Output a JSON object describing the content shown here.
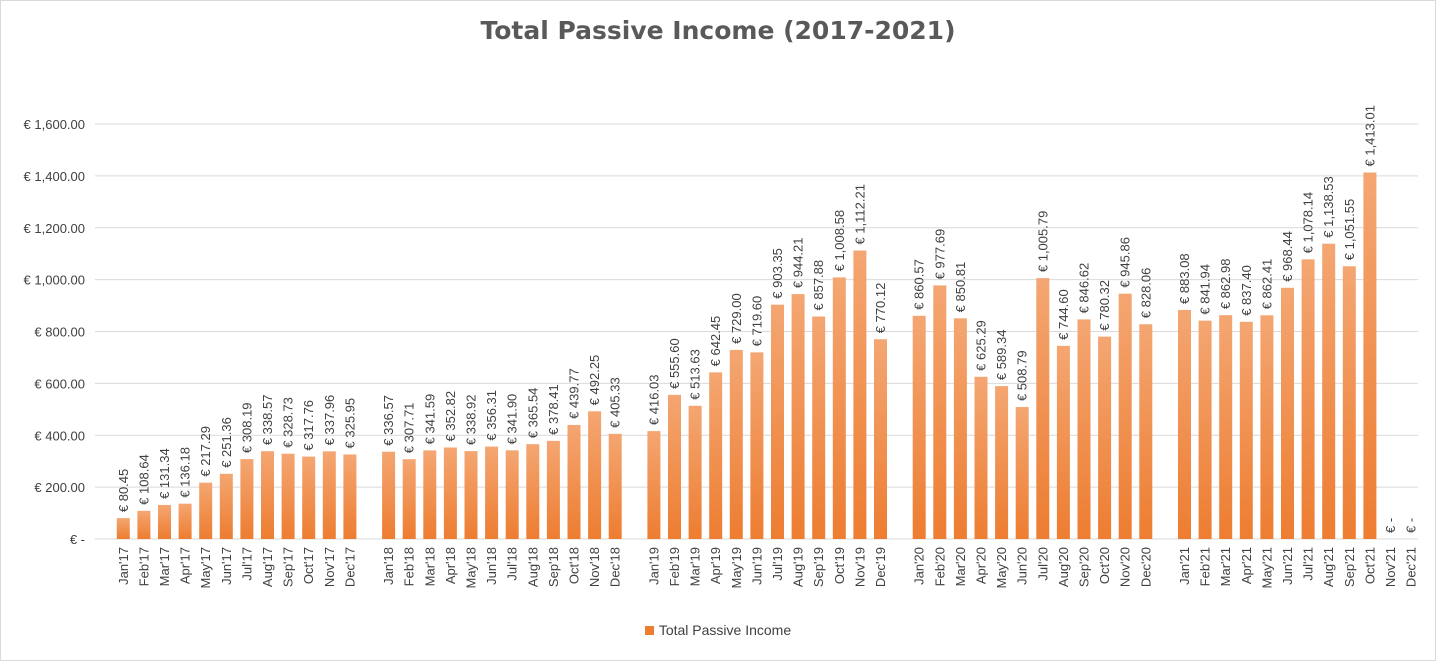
{
  "chart_data": {
    "type": "bar",
    "title": "Total Passive Income (2017-2021)",
    "xlabel": "",
    "ylabel": "",
    "ylim": [
      0,
      1600
    ],
    "y_ticks": [
      0,
      200,
      400,
      600,
      800,
      1000,
      1200,
      1400,
      1600
    ],
    "y_tick_labels": [
      "€ -",
      "€ 200.00",
      "€ 400.00",
      "€ 600.00",
      "€ 800.00",
      "€ 1,000.00",
      "€ 1,200.00",
      "€ 1,400.00",
      "€ 1,600.00"
    ],
    "grid": true,
    "legend_position": "bottom",
    "bar_color": "#ed7d31",
    "bar_color_light": "#f4a672",
    "series": [
      {
        "name": "Total Passive Income",
        "groups": [
          {
            "categories": [
              "Jan'17",
              "Feb'17",
              "Mar'17",
              "Apr'17",
              "May'17",
              "Jun'17",
              "Jul'17",
              "Aug'17",
              "Sep'17",
              "Oct'17",
              "Nov'17",
              "Dec'17"
            ],
            "values": [
              80.45,
              108.64,
              131.34,
              136.18,
              217.29,
              251.36,
              308.19,
              338.57,
              328.73,
              317.76,
              337.96,
              325.95
            ],
            "labels": [
              "€ 80.45",
              "€ 108.64",
              "€ 131.34",
              "€ 136.18",
              "€ 217.29",
              "€ 251.36",
              "€ 308.19",
              "€ 338.57",
              "€ 328.73",
              "€ 317.76",
              "€ 337.96",
              "€ 325.95"
            ]
          },
          {
            "categories": [
              "Jan'18",
              "Feb'18",
              "Mar'18",
              "Apr'18",
              "May'18",
              "Jun'18",
              "Jul'18",
              "Aug'18",
              "Sep'18",
              "Oct'18",
              "Nov'18",
              "Dec'18"
            ],
            "values": [
              336.57,
              307.71,
              341.59,
              352.82,
              338.92,
              356.31,
              341.9,
              365.54,
              378.41,
              439.77,
              492.25,
              405.33
            ],
            "labels": [
              "€ 336.57",
              "€ 307.71",
              "€ 341.59",
              "€ 352.82",
              "€ 338.92",
              "€ 356.31",
              "€ 341.90",
              "€ 365.54",
              "€ 378.41",
              "€ 439.77",
              "€ 492.25",
              "€ 405.33"
            ]
          },
          {
            "categories": [
              "Jan'19",
              "Feb'19",
              "Mar'19",
              "Apr'19",
              "May'19",
              "Jun'19",
              "Jul'19",
              "Aug'19",
              "Sep'19",
              "Oct'19",
              "Nov'19",
              "Dec'19"
            ],
            "values": [
              416.03,
              555.6,
              513.63,
              642.45,
              729.0,
              719.6,
              903.35,
              944.21,
              857.88,
              1008.58,
              1112.21,
              770.12
            ],
            "labels": [
              "€ 416.03",
              "€ 555.60",
              "€ 513.63",
              "€ 642.45",
              "€ 729.00",
              "€ 719.60",
              "€ 903.35",
              "€ 944.21",
              "€ 857.88",
              "€ 1,008.58",
              "€ 1,112.21",
              "€ 770.12"
            ]
          },
          {
            "categories": [
              "Jan'20",
              "Feb'20",
              "Mar'20",
              "Apr'20",
              "May'20",
              "Jun'20",
              "Jul'20",
              "Aug'20",
              "Sep'20",
              "Oct'20",
              "Nov'20",
              "Dec'20"
            ],
            "values": [
              860.57,
              977.69,
              850.81,
              625.29,
              589.34,
              508.79,
              1005.79,
              744.6,
              846.62,
              780.32,
              945.86,
              828.06
            ],
            "labels": [
              "€ 860.57",
              "€ 977.69",
              "€ 850.81",
              "€ 625.29",
              "€ 589.34",
              "€ 508.79",
              "€ 1,005.79",
              "€ 744.60",
              "€ 846.62",
              "€ 780.32",
              "€ 945.86",
              "€ 828.06"
            ]
          },
          {
            "categories": [
              "Jan'21",
              "Feb'21",
              "Mar'21",
              "Apr'21",
              "May'21",
              "Jun'21",
              "Jul'21",
              "Aug'21",
              "Sep'21",
              "Oct'21",
              "Nov'21",
              "Dec'21"
            ],
            "values": [
              883.08,
              841.94,
              862.98,
              837.4,
              862.41,
              968.44,
              1078.14,
              1138.53,
              1051.55,
              1413.01,
              0,
              0
            ],
            "labels": [
              "€ 883.08",
              "€ 841.94",
              "€ 862.98",
              "€ 837.40",
              "€ 862.41",
              "€ 968.44",
              "€ 1,078.14",
              "€ 1,138.53",
              "€ 1,051.55",
              "€ 1,413.01",
              "€ -",
              "€ -"
            ]
          }
        ]
      }
    ]
  }
}
